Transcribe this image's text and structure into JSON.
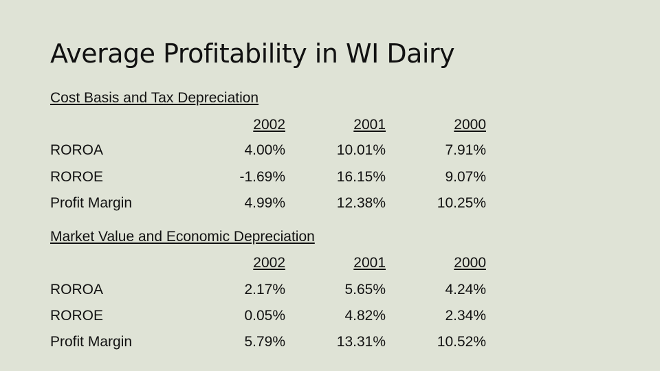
{
  "slide": {
    "title": "Average Profitability in WI Dairy"
  },
  "sections": [
    {
      "heading": "Cost Basis and Tax Depreciation",
      "years": [
        "2002",
        "2001",
        "2000"
      ],
      "rows": [
        {
          "label": "ROROA",
          "values": [
            "4.00%",
            "10.01%",
            "7.91%"
          ]
        },
        {
          "label": "ROROE",
          "values": [
            "-1.69%",
            "16.15%",
            "9.07%"
          ]
        },
        {
          "label": "Profit Margin",
          "values": [
            "4.99%",
            "12.38%",
            "10.25%"
          ]
        }
      ]
    },
    {
      "heading": "Market Value and Economic Depreciation",
      "years": [
        "2002",
        "2001",
        "2000"
      ],
      "rows": [
        {
          "label": "ROROA",
          "values": [
            "2.17%",
            "5.65%",
            "4.24%"
          ]
        },
        {
          "label": "ROROE",
          "values": [
            "0.05%",
            "4.82%",
            "2.34%"
          ]
        },
        {
          "label": "Profit Margin",
          "values": [
            "5.79%",
            "13.31%",
            "10.52%"
          ]
        }
      ]
    }
  ]
}
